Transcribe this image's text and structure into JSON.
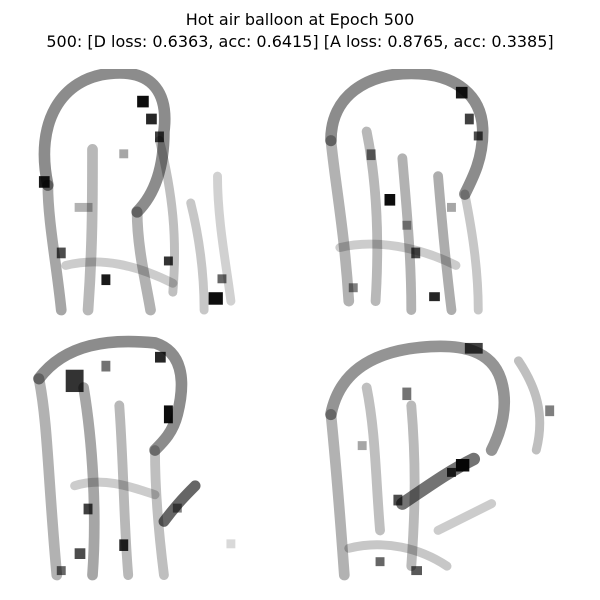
{
  "figure": {
    "title": "Hot air balloon at Epoch 500",
    "subtitle": "500: [D loss: 0.6363, acc: 0.6415]  [A loss: 0.8765, acc: 0.3385]"
  },
  "samples": [
    {
      "description_icon": "generated-grayscale-sample-1"
    },
    {
      "description_icon": "generated-grayscale-sample-2"
    },
    {
      "description_icon": "generated-grayscale-sample-3"
    },
    {
      "description_icon": "generated-grayscale-sample-4"
    }
  ],
  "colors": {
    "background": "#ffffff",
    "ink": "#000000"
  }
}
